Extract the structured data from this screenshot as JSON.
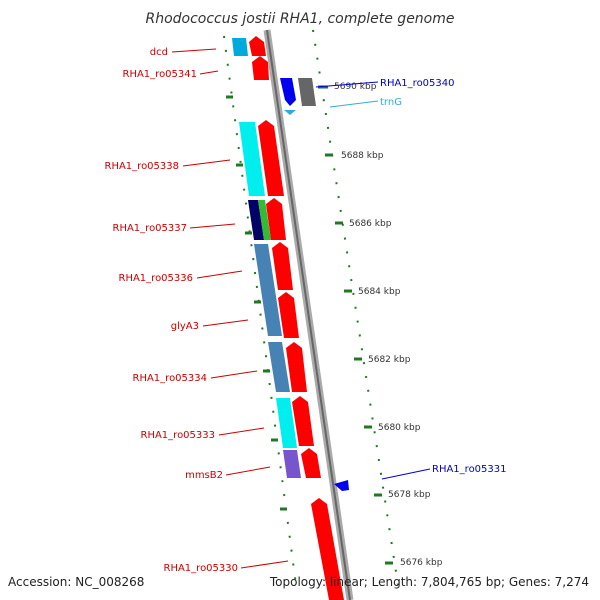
{
  "title": "Rhodococcus jostii RHA1, complete genome",
  "accession": "Accession: NC_008268",
  "topology": "Topology: linear; Length: 7,804,765 bp; Genes: 7,274",
  "colors": {
    "forward_gene": "#ff0000",
    "reverse_gene": "#0000ee",
    "backbone": "#888888",
    "tick": "#227722",
    "cyan": "#00eeee",
    "steelblue": "#4682b4",
    "navy": "#000066",
    "green": "#33bb33",
    "purple": "#7755cc",
    "gray": "#666666"
  },
  "genes": [
    {
      "name": "dcd",
      "strand": "forward",
      "color": "red"
    },
    {
      "name": "RHA1_ro05341",
      "strand": "forward",
      "color": "red"
    },
    {
      "name": "RHA1_ro05340",
      "strand": "reverse",
      "color": "blue"
    },
    {
      "name": "trnG",
      "strand": "reverse",
      "color": "cyan"
    },
    {
      "name": "RHA1_ro05338",
      "strand": "forward",
      "color": "red"
    },
    {
      "name": "RHA1_ro05337",
      "strand": "forward",
      "color": "red"
    },
    {
      "name": "RHA1_ro05336",
      "strand": "forward",
      "color": "red"
    },
    {
      "name": "glyA3",
      "strand": "forward",
      "color": "red"
    },
    {
      "name": "RHA1_ro05334",
      "strand": "forward",
      "color": "red"
    },
    {
      "name": "RHA1_ro05333",
      "strand": "forward",
      "color": "red"
    },
    {
      "name": "mmsB2",
      "strand": "forward",
      "color": "red"
    },
    {
      "name": "RHA1_ro05331",
      "strand": "reverse",
      "color": "blue"
    },
    {
      "name": "RHA1_ro05330",
      "strand": "forward",
      "color": "red"
    }
  ],
  "positions": [
    "5690 kbp",
    "5688 kbp",
    "5686 kbp",
    "5684 kbp",
    "5682 kbp",
    "5680 kbp",
    "5678 kbp",
    "5676 kbp"
  ]
}
